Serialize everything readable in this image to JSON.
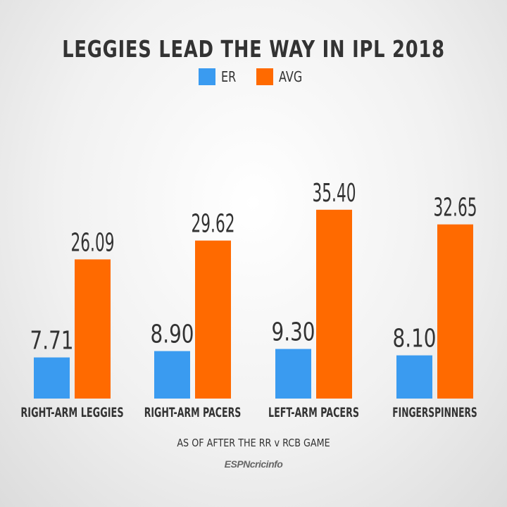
{
  "colors": {
    "er": "#3a9bf0",
    "avg": "#ff6a00",
    "text": "#333333"
  },
  "footnote": "AS OF AFTER THE RR v RCB GAME",
  "brand": "ESPNcricinfo",
  "chart_data": {
    "type": "bar",
    "title": "LEGGIES LEAD THE WAY IN IPL 2018",
    "categories": [
      "RIGHT-ARM LEGGIES",
      "RIGHT-ARM PACERS",
      "LEFT-ARM PACERS",
      "FINGERSPINNERS"
    ],
    "series": [
      {
        "name": "ER",
        "values": [
          7.71,
          8.9,
          9.3,
          8.1
        ],
        "labels": [
          "7.71",
          "8.90",
          "9.30",
          "8.10"
        ]
      },
      {
        "name": "AVG",
        "values": [
          26.09,
          29.62,
          35.4,
          32.65
        ],
        "labels": [
          "26.09",
          "29.62",
          "35.40",
          "32.65"
        ]
      }
    ],
    "legend": "top-center",
    "grid": false
  }
}
